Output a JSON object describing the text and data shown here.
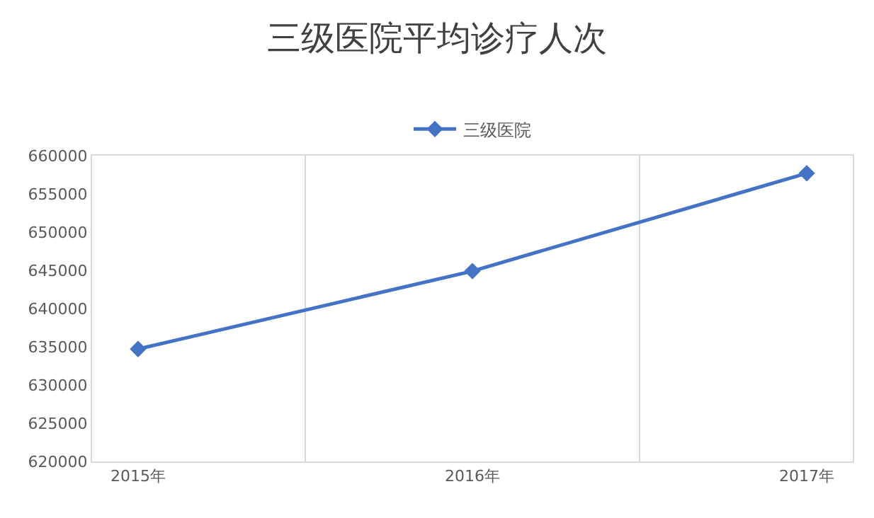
{
  "chart_data": {
    "type": "line",
    "title": "三级医院平均诊疗人次",
    "categories": [
      "2015年",
      "2016年",
      "2017年"
    ],
    "series": [
      {
        "name": "三级医院",
        "color": "#4472c4",
        "values": [
          634700,
          644900,
          657700
        ]
      }
    ],
    "ylim": [
      620000,
      660000
    ],
    "yticks": [
      620000,
      625000,
      630000,
      635000,
      640000,
      645000,
      650000,
      655000,
      660000
    ],
    "grid": "x",
    "legend": "top",
    "marker": "diamond",
    "line_style": "solid"
  }
}
